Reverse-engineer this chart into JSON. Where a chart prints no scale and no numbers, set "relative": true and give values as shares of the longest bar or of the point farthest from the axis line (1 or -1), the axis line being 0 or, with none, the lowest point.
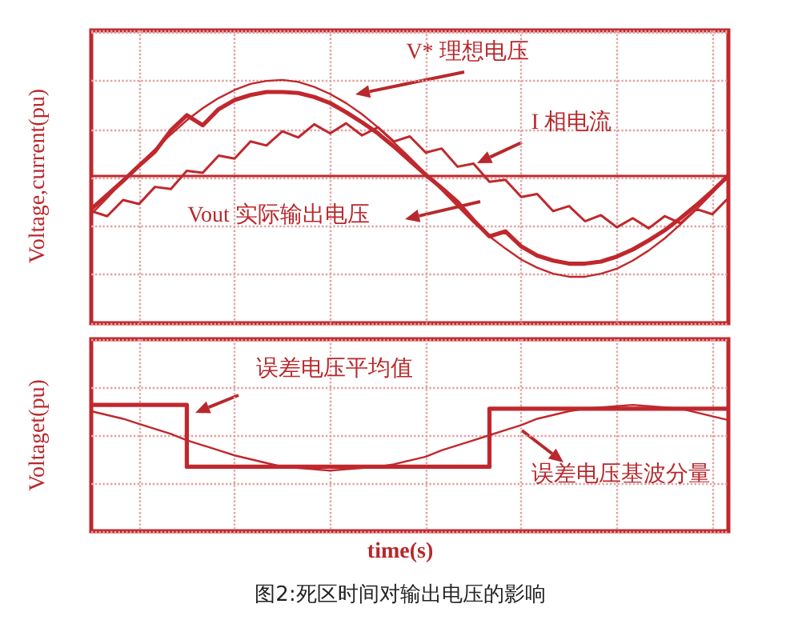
{
  "chart_data": [
    {
      "type": "line",
      "ylabel": "Voltage,current(pu)",
      "relative": true,
      "grid": true,
      "marker": "none",
      "ref_lines": [
        {
          "axis": "y",
          "value": 0,
          "color": "#c0282d"
        }
      ],
      "categories": [
        null,
        null,
        null,
        null,
        null,
        null,
        null,
        null,
        null,
        null,
        null,
        null,
        null,
        null,
        null,
        null,
        null,
        null,
        null,
        null,
        null,
        null,
        null,
        null,
        null,
        null,
        null,
        null,
        null,
        null,
        null,
        null,
        null,
        null,
        null,
        null,
        null,
        null,
        null,
        null,
        null
      ],
      "series": [
        {
          "name": "V* 理想电压",
          "color": "#c0282d",
          "values": [
            -0.38,
            -0.22,
            -0.05,
            0.11,
            0.26,
            0.41,
            0.55,
            0.67,
            0.77,
            0.85,
            0.91,
            0.94,
            0.95,
            0.93,
            0.88,
            0.81,
            0.72,
            0.61,
            0.48,
            0.33,
            0.18,
            0.02,
            -0.14,
            -0.3,
            -0.46,
            -0.6,
            -0.72,
            -0.83,
            -0.91,
            -0.97,
            -1.0,
            -1.0,
            -0.97,
            -0.92,
            -0.84,
            -0.74,
            -0.62,
            -0.48,
            -0.33,
            -0.17,
            0.0
          ]
        },
        {
          "name": "I 相电流",
          "color": "#c0282d",
          "values": [
            -0.35,
            -0.4,
            -0.24,
            -0.28,
            -0.11,
            -0.13,
            0.05,
            0.03,
            0.2,
            0.17,
            0.34,
            0.3,
            0.44,
            0.38,
            0.51,
            0.42,
            0.52,
            0.4,
            0.48,
            0.34,
            0.39,
            0.23,
            0.27,
            0.09,
            0.12,
            -0.06,
            -0.04,
            -0.21,
            -0.18,
            -0.35,
            -0.3,
            -0.45,
            -0.39,
            -0.51,
            -0.42,
            -0.52,
            -0.4,
            -0.47,
            -0.33,
            -0.38,
            -0.22
          ]
        },
        {
          "name": "Vout 实际输出电压",
          "color": "#c0282d",
          "values": [
            -0.33,
            -0.19,
            -0.05,
            0.1,
            0.24,
            0.45,
            0.6,
            0.5,
            0.66,
            0.75,
            0.8,
            0.83,
            0.83,
            0.82,
            0.78,
            0.72,
            0.63,
            0.53,
            0.42,
            0.29,
            0.15,
            0.01,
            -0.12,
            -0.26,
            -0.44,
            -0.6,
            -0.55,
            -0.7,
            -0.79,
            -0.84,
            -0.87,
            -0.87,
            -0.85,
            -0.8,
            -0.73,
            -0.64,
            -0.54,
            -0.42,
            -0.29,
            -0.15,
            0.0
          ]
        }
      ]
    },
    {
      "type": "line",
      "ylabel": "Voltaget(pu)",
      "xlabel": "time(s)",
      "relative": true,
      "grid": true,
      "marker": "none",
      "annotations": [
        "图2:死区时间对输出电压的影响"
      ],
      "categories": [
        null,
        null,
        null,
        null,
        null,
        null,
        null,
        null,
        null,
        null,
        null,
        null,
        null,
        null,
        null,
        null,
        null,
        null,
        null,
        null,
        null,
        null,
        null,
        null,
        null,
        null,
        null,
        null,
        null,
        null,
        null,
        null,
        null,
        null,
        null,
        null,
        null,
        null,
        null,
        null,
        null
      ],
      "series": [
        {
          "name": "误差电压平均值",
          "type": "step",
          "color": "#c0282d",
          "values": [
            1.0,
            1.0,
            1.0,
            1.0,
            1.0,
            1.0,
            0.51,
            0.51,
            0.51,
            0.51,
            0.51,
            0.51,
            0.51,
            0.51,
            0.51,
            0.51,
            0.51,
            0.51,
            0.51,
            0.51,
            0.51,
            0.51,
            0.51,
            0.51,
            0.51,
            0.97,
            0.97,
            0.97,
            0.97,
            0.97,
            0.97,
            0.97,
            0.97,
            0.97,
            0.97,
            0.97,
            0.97,
            0.97,
            0.97,
            0.97,
            0.97
          ]
        },
        {
          "name": "误差电压基波分量",
          "color": "#c0282d",
          "values": [
            0.95,
            0.92,
            0.89,
            0.85,
            0.81,
            0.77,
            0.72,
            0.68,
            0.64,
            0.6,
            0.57,
            0.54,
            0.51,
            0.5,
            0.49,
            0.48,
            0.49,
            0.5,
            0.51,
            0.53,
            0.56,
            0.59,
            0.64,
            0.68,
            0.72,
            0.76,
            0.8,
            0.84,
            0.89,
            0.92,
            0.95,
            0.97,
            0.98,
            0.99,
            1.0,
            0.99,
            0.98,
            0.97,
            0.94,
            0.91,
            0.88
          ]
        }
      ]
    }
  ]
}
